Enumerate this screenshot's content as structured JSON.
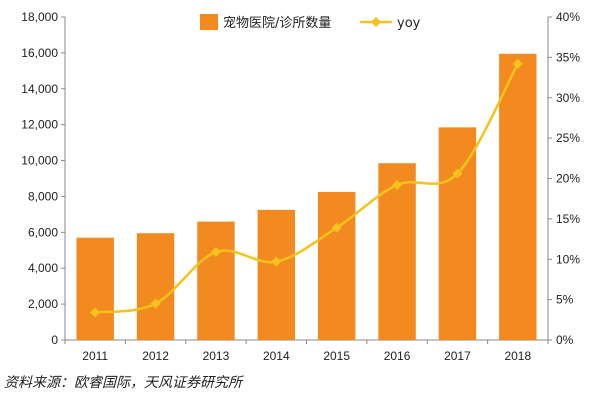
{
  "chart_data": {
    "type": "bar",
    "categories": [
      "2011",
      "2012",
      "2013",
      "2014",
      "2015",
      "2016",
      "2017",
      "2018"
    ],
    "series": [
      {
        "name": "宠物医院/诊所数量",
        "type": "bar",
        "axis": "left",
        "color": "#f28a1f",
        "values": [
          5700,
          5950,
          6600,
          7250,
          8250,
          9850,
          11850,
          15950
        ]
      },
      {
        "name": "yoy",
        "type": "line",
        "axis": "right",
        "color": "#f5c21b",
        "values": [
          0.034,
          0.045,
          0.109,
          0.097,
          0.139,
          0.192,
          0.206,
          0.342
        ]
      }
    ],
    "left_axis": {
      "min": 0,
      "max": 18000,
      "ticks": [
        "0",
        "2,000",
        "4,000",
        "6,000",
        "8,000",
        "10,000",
        "12,000",
        "14,000",
        "16,000",
        "18,000"
      ]
    },
    "right_axis": {
      "min": 0,
      "max": 0.4,
      "ticks": [
        "0%",
        "5%",
        "10%",
        "15%",
        "20%",
        "25%",
        "30%",
        "35%",
        "40%"
      ]
    },
    "legend_position": "top",
    "grid": false
  },
  "source_text": "资料来源：欧睿国际，天风证券研究所"
}
